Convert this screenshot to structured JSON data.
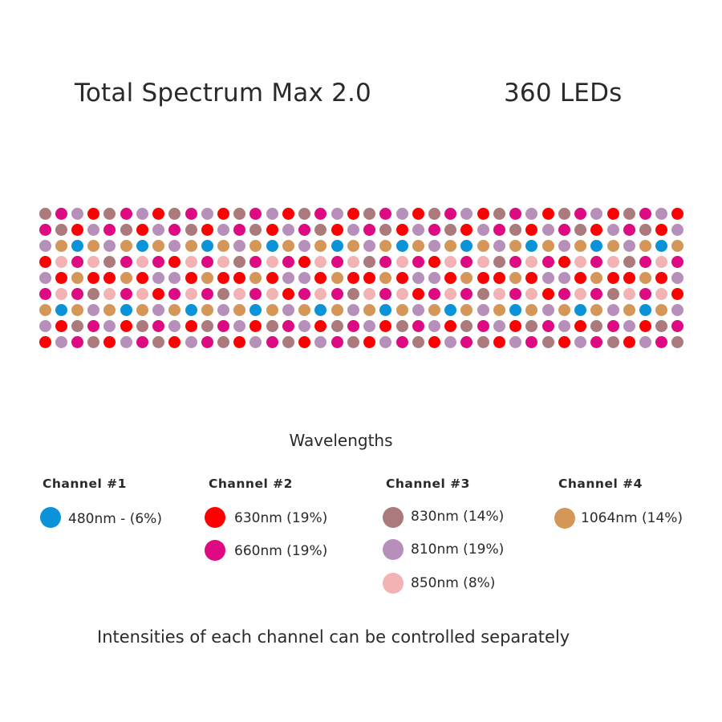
{
  "header": {
    "title": "Total Spectrum Max 2.0",
    "led_count": "360 LEDs"
  },
  "colors": {
    "C": "#0a93d8",
    "R": "#fd0000",
    "M": "#dd0a82",
    "B": "#aa7a7c",
    "L": "#b78fbb",
    "P": "#f3b2b4",
    "O": "#d49758"
  },
  "led_grid": [
    "BMLRBMLRBMLRBMLRBMLRBMLRBMLRBMLRBMLRBMLR",
    "MBRLMBRLMBRLMBRLMBRLMBRLMBRLMBRLMBRLMBRL",
    "LOCOLOCOLOCOLOCOLOCOLOCOLOCOLOCOLOCOLOCO",
    "RPMPBMPMRPMPBMPMRPMPBMPMRPMPBMPMRPMPBMPM",
    "LRORRORLLRORRORLLRORRORLLRORRORLLRORRORL",
    "MPMBPMPRMPMBPMPRMPMBPMPRMPMBPMPRMPMBPMPR",
    "OCOLOCOLOCOLOCOLOCOLOCOLOCOLOCOLOCOLOCOL",
    "LRBMLRBMLRBMLRBMLRBMLRBMLRBMLRBMLRBMLRBM",
    "RLMBRLMBRLMBRLMBRLMBRLMBRLMBRLMBRLMBRLMB"
  ],
  "legend": {
    "title": "Wavelengths",
    "channels": [
      {
        "name": "Channel #1",
        "items": [
          {
            "code": "C",
            "label": "480nm - (6%)"
          }
        ]
      },
      {
        "name": "Channel #2",
        "items": [
          {
            "code": "R",
            "label": "630nm (19%)"
          },
          {
            "code": "M",
            "label": "660nm (19%)"
          }
        ]
      },
      {
        "name": "Channel #3",
        "items": [
          {
            "code": "B",
            "label": "830nm (14%)"
          },
          {
            "code": "L",
            "label": "810nm (19%)"
          },
          {
            "code": "P",
            "label": "850nm (8%)"
          }
        ]
      },
      {
        "name": "Channel #4",
        "items": [
          {
            "code": "O",
            "label": "1064nm (14%)"
          }
        ]
      }
    ]
  },
  "footer": "Intensities of each channel can be controlled separately"
}
